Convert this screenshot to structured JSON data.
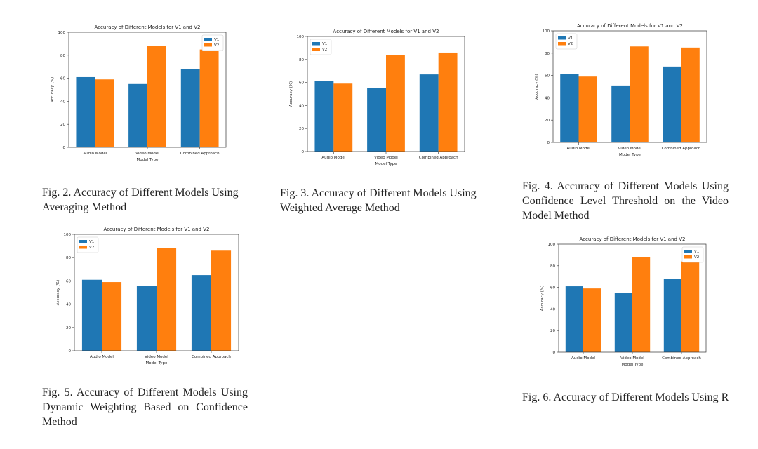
{
  "colors": {
    "v1": "#1f77b4",
    "v2": "#ff7f0e"
  },
  "captions": {
    "fig2": "Fig. 2. Accuracy of Different Models Using Averaging Method",
    "fig3": "Fig. 3. Accuracy of Different Models Using Weighted Average Method",
    "fig4": "Fig. 4. Accuracy of Different Models Using Confidence Level Threshold on the Video Model Method",
    "fig5": "Fig. 5. Accuracy of Different Models Using Dynamic Weighting Based on Confidence Method",
    "fig6": "Fig. 6. Accuracy of Different Models Using R"
  },
  "chart_data": [
    {
      "id": "fig2",
      "type": "bar",
      "title": "Accuracy of Different Models for V1 and V2",
      "xlabel": "Model Type",
      "ylabel": "Accuracy (%)",
      "categories": [
        "Audio Model",
        "Video Model",
        "Combined Approach"
      ],
      "series": [
        {
          "name": "V1",
          "values": [
            61,
            55,
            68
          ]
        },
        {
          "name": "V2",
          "values": [
            59,
            88,
            85
          ]
        }
      ],
      "ylim": [
        0,
        100
      ],
      "yticks": [
        0,
        20,
        40,
        60,
        80,
        100
      ],
      "legend": "top-right",
      "grid": false
    },
    {
      "id": "fig3",
      "type": "bar",
      "title": "Accuracy of Different Models for V1 and V2",
      "xlabel": "Model Type",
      "ylabel": "Accuracy (%)",
      "categories": [
        "Audio Model",
        "Video Model",
        "Combined Approach"
      ],
      "series": [
        {
          "name": "V1",
          "values": [
            61,
            55,
            67
          ]
        },
        {
          "name": "V2",
          "values": [
            59,
            84,
            86
          ]
        }
      ],
      "ylim": [
        0,
        100
      ],
      "yticks": [
        0,
        20,
        40,
        60,
        80,
        100
      ],
      "legend": "top-left",
      "grid": false
    },
    {
      "id": "fig4",
      "type": "bar",
      "title": "Accuracy of Different Models for V1 and V2",
      "xlabel": "Model Type",
      "ylabel": "Accuracy (%)",
      "categories": [
        "Audio Model",
        "Video Model",
        "Combined Approach"
      ],
      "series": [
        {
          "name": "V1",
          "values": [
            61,
            51,
            68
          ]
        },
        {
          "name": "V2",
          "values": [
            59,
            86,
            85
          ]
        }
      ],
      "ylim": [
        0,
        100
      ],
      "yticks": [
        0,
        20,
        40,
        60,
        80,
        100
      ],
      "legend": "top-left",
      "grid": false
    },
    {
      "id": "fig5",
      "type": "bar",
      "title": "Accuracy of Different Models for V1 and V2",
      "xlabel": "Model Type",
      "ylabel": "Accuracy (%)",
      "categories": [
        "Audio Model",
        "Video Model",
        "Combined Approach"
      ],
      "series": [
        {
          "name": "V1",
          "values": [
            61,
            56,
            65
          ]
        },
        {
          "name": "V2",
          "values": [
            59,
            88,
            86
          ]
        }
      ],
      "ylim": [
        0,
        100
      ],
      "yticks": [
        0,
        20,
        40,
        60,
        80,
        100
      ],
      "legend": "top-left",
      "grid": false
    },
    {
      "id": "fig6",
      "type": "bar",
      "title": "Accuracy of Different Models for V1 and V2",
      "xlabel": "Model Type",
      "ylabel": "Accuracy (%)",
      "categories": [
        "Audio Model",
        "Video Model",
        "Combined Approach"
      ],
      "series": [
        {
          "name": "V1",
          "values": [
            61,
            55,
            68
          ]
        },
        {
          "name": "V2",
          "values": [
            59,
            88,
            84
          ]
        }
      ],
      "ylim": [
        0,
        100
      ],
      "yticks": [
        0,
        20,
        40,
        60,
        80,
        100
      ],
      "legend": "top-right",
      "grid": false
    }
  ]
}
